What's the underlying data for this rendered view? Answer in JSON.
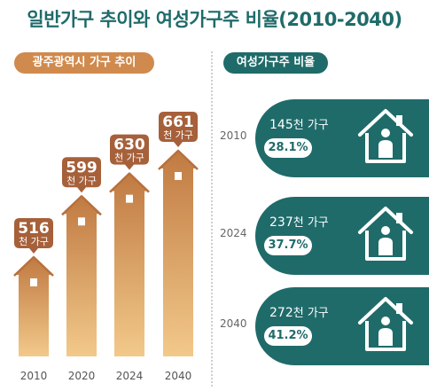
{
  "title": "일반가구 추이와 여성가구주 비율(2010-2040)",
  "left_tag": "광주광역시 가구 추이",
  "right_tag": "여성가구주 비율",
  "unit": "천 가구",
  "colors": {
    "teal": "#1f6b6a",
    "orange": "#d08a4d",
    "bubble": "#a6603a"
  },
  "icons": [
    "house-icon",
    "person-icon"
  ],
  "chart_data": {
    "type": "bar",
    "categories": [
      "2010",
      "2020",
      "2024",
      "2040"
    ],
    "values": [
      516,
      599,
      630,
      661
    ],
    "ylabel": "천 가구"
  },
  "female_head": [
    {
      "year": "2010",
      "count": "145",
      "unit": "천 가구",
      "pct": "28.1%"
    },
    {
      "year": "2024",
      "count": "237",
      "unit": "천 가구",
      "pct": "37.7%"
    },
    {
      "year": "2040",
      "count": "272",
      "unit": "천 가구",
      "pct": "41.2%"
    }
  ]
}
